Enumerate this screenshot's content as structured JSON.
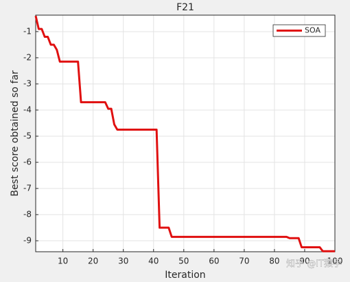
{
  "chart_data": {
    "type": "line",
    "title": "F21",
    "xlabel": "Iteration",
    "ylabel": "Best score obtained so far",
    "x": [
      1,
      2,
      3,
      4,
      5,
      6,
      7,
      8,
      9,
      10,
      11,
      12,
      13,
      14,
      15,
      16,
      17,
      18,
      19,
      20,
      21,
      22,
      23,
      24,
      25,
      26,
      27,
      28,
      29,
      30,
      31,
      32,
      33,
      34,
      35,
      36,
      37,
      38,
      39,
      40,
      41,
      42,
      43,
      44,
      45,
      46,
      47,
      48,
      49,
      50,
      51,
      52,
      53,
      54,
      55,
      56,
      57,
      58,
      59,
      60,
      61,
      62,
      63,
      64,
      65,
      66,
      67,
      68,
      69,
      70,
      71,
      72,
      73,
      74,
      75,
      76,
      77,
      78,
      79,
      80,
      81,
      82,
      83,
      84,
      85,
      86,
      87,
      88,
      89,
      90,
      91,
      92,
      93,
      94,
      95,
      96,
      97,
      98,
      99,
      100
    ],
    "series": [
      {
        "name": "SOA",
        "color": "#e01010",
        "values": [
          -0.4,
          -0.9,
          -0.9,
          -1.2,
          -1.2,
          -1.5,
          -1.5,
          -1.7,
          -2.15,
          -2.15,
          -2.15,
          -2.15,
          -2.15,
          -2.15,
          -2.15,
          -3.7,
          -3.7,
          -3.7,
          -3.7,
          -3.7,
          -3.7,
          -3.7,
          -3.7,
          -3.7,
          -3.95,
          -3.95,
          -4.55,
          -4.75,
          -4.75,
          -4.75,
          -4.75,
          -4.75,
          -4.75,
          -4.75,
          -4.75,
          -4.75,
          -4.75,
          -4.75,
          -4.75,
          -4.75,
          -4.75,
          -8.5,
          -8.5,
          -8.5,
          -8.5,
          -8.85,
          -8.85,
          -8.85,
          -8.85,
          -8.85,
          -8.85,
          -8.85,
          -8.85,
          -8.85,
          -8.85,
          -8.85,
          -8.85,
          -8.85,
          -8.85,
          -8.85,
          -8.85,
          -8.85,
          -8.85,
          -8.85,
          -8.85,
          -8.85,
          -8.85,
          -8.85,
          -8.85,
          -8.85,
          -8.85,
          -8.85,
          -8.85,
          -8.85,
          -8.85,
          -8.85,
          -8.85,
          -8.85,
          -8.85,
          -8.85,
          -8.85,
          -8.85,
          -8.85,
          -8.85,
          -8.9,
          -8.9,
          -8.9,
          -8.9,
          -9.25,
          -9.25,
          -9.25,
          -9.25,
          -9.25,
          -9.25,
          -9.25,
          -9.4,
          -9.4,
          -9.4,
          -9.4,
          -9.4
        ]
      }
    ],
    "xlim": [
      1,
      100
    ],
    "xticks": [
      10,
      20,
      30,
      40,
      50,
      60,
      70,
      80,
      90,
      100
    ],
    "ylim": [
      -9.42,
      -0.37
    ],
    "yticks": [
      -9,
      -8,
      -7,
      -6,
      -5,
      -4,
      -3,
      -2,
      -1
    ],
    "grid": true,
    "legend": "top-right",
    "watermark": "知乎 @IT猿手"
  }
}
